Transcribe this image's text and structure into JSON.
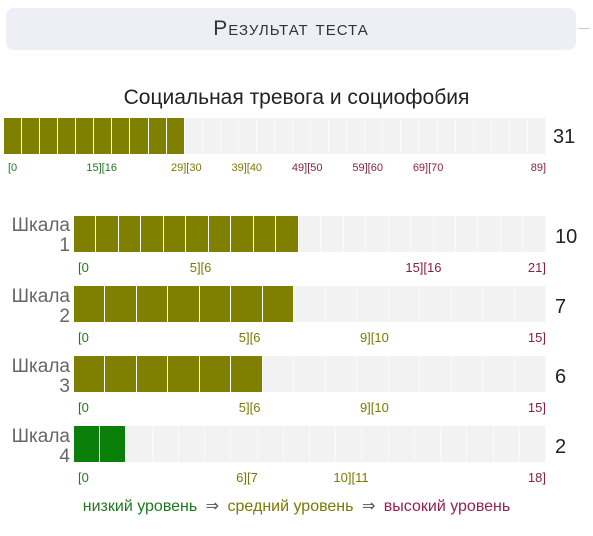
{
  "header": {
    "title": "Результат теста"
  },
  "main": {
    "title": "Социальная тревога и социофобия",
    "score": "31",
    "value": 31,
    "max": 89,
    "cells": 30,
    "color": "#7f7f00",
    "ticks": [
      {
        "text": "[0",
        "pos": 0,
        "color": "#1e7a1e",
        "align": "left"
      },
      {
        "text": "15][16",
        "pos": 15.5,
        "color": "#1e7a1e",
        "align": "center"
      },
      {
        "text": "29][30",
        "pos": 29.5,
        "color": "#7a7a00",
        "align": "center"
      },
      {
        "text": "39][40",
        "pos": 39.5,
        "color": "#7a7a00",
        "align": "center"
      },
      {
        "text": "49][50",
        "pos": 49.5,
        "color": "#8a2040",
        "align": "center"
      },
      {
        "text": "59][60",
        "pos": 59.5,
        "color": "#8a2040",
        "align": "center"
      },
      {
        "text": "69][70",
        "pos": 69.5,
        "color": "#8a2040",
        "align": "center"
      },
      {
        "text": "89]",
        "pos": 89,
        "color": "#8a2040",
        "align": "right"
      }
    ]
  },
  "scales": [
    {
      "label": "Шкала",
      "number": "1",
      "score": "10",
      "value": 10,
      "max": 21,
      "cells": 21,
      "color": "#7f7f00",
      "ticks": [
        {
          "text": "[0",
          "pos": 0,
          "color": "#1e7a1e",
          "align": "left"
        },
        {
          "text": "5][6",
          "pos": 5.5,
          "color": "#7a7a00",
          "align": "center"
        },
        {
          "text": "15][16",
          "pos": 15.5,
          "color": "#8a2040",
          "align": "center"
        },
        {
          "text": "21]",
          "pos": 21,
          "color": "#8a2040",
          "align": "right"
        }
      ]
    },
    {
      "label": "Шкала",
      "number": "2",
      "score": "7",
      "value": 7,
      "max": 15,
      "cells": 15,
      "color": "#7f7f00",
      "ticks": [
        {
          "text": "[0",
          "pos": 0,
          "color": "#1e7a1e",
          "align": "left"
        },
        {
          "text": "5][6",
          "pos": 5.5,
          "color": "#7a7a00",
          "align": "center"
        },
        {
          "text": "9][10",
          "pos": 9.5,
          "color": "#7a7a00",
          "align": "center"
        },
        {
          "text": "15]",
          "pos": 15,
          "color": "#8a2040",
          "align": "right"
        }
      ]
    },
    {
      "label": "Шкала",
      "number": "3",
      "score": "6",
      "value": 6,
      "max": 15,
      "cells": 15,
      "color": "#7f7f00",
      "ticks": [
        {
          "text": "[0",
          "pos": 0,
          "color": "#1e7a1e",
          "align": "left"
        },
        {
          "text": "5][6",
          "pos": 5.5,
          "color": "#7a7a00",
          "align": "center"
        },
        {
          "text": "9][10",
          "pos": 9.5,
          "color": "#7a7a00",
          "align": "center"
        },
        {
          "text": "15]",
          "pos": 15,
          "color": "#8a2040",
          "align": "right"
        }
      ]
    },
    {
      "label": "Шкала",
      "number": "4",
      "score": "2",
      "value": 2,
      "max": 18,
      "cells": 18,
      "color": "#0a800a",
      "ticks": [
        {
          "text": "[0",
          "pos": 0,
          "color": "#1e7a1e",
          "align": "left"
        },
        {
          "text": "6][7",
          "pos": 6.5,
          "color": "#7a7a00",
          "align": "center"
        },
        {
          "text": "10][11",
          "pos": 10.5,
          "color": "#7a7a00",
          "align": "center"
        },
        {
          "text": "18]",
          "pos": 18,
          "color": "#8a2040",
          "align": "right"
        }
      ]
    }
  ],
  "legend": {
    "low": "низкий уровень",
    "mid": "средний уровень",
    "high": "высокий уровень",
    "arrow": "⇒",
    "low_color": "#1e7a1e",
    "mid_color": "#7a7a00",
    "high_color": "#9a2050"
  }
}
